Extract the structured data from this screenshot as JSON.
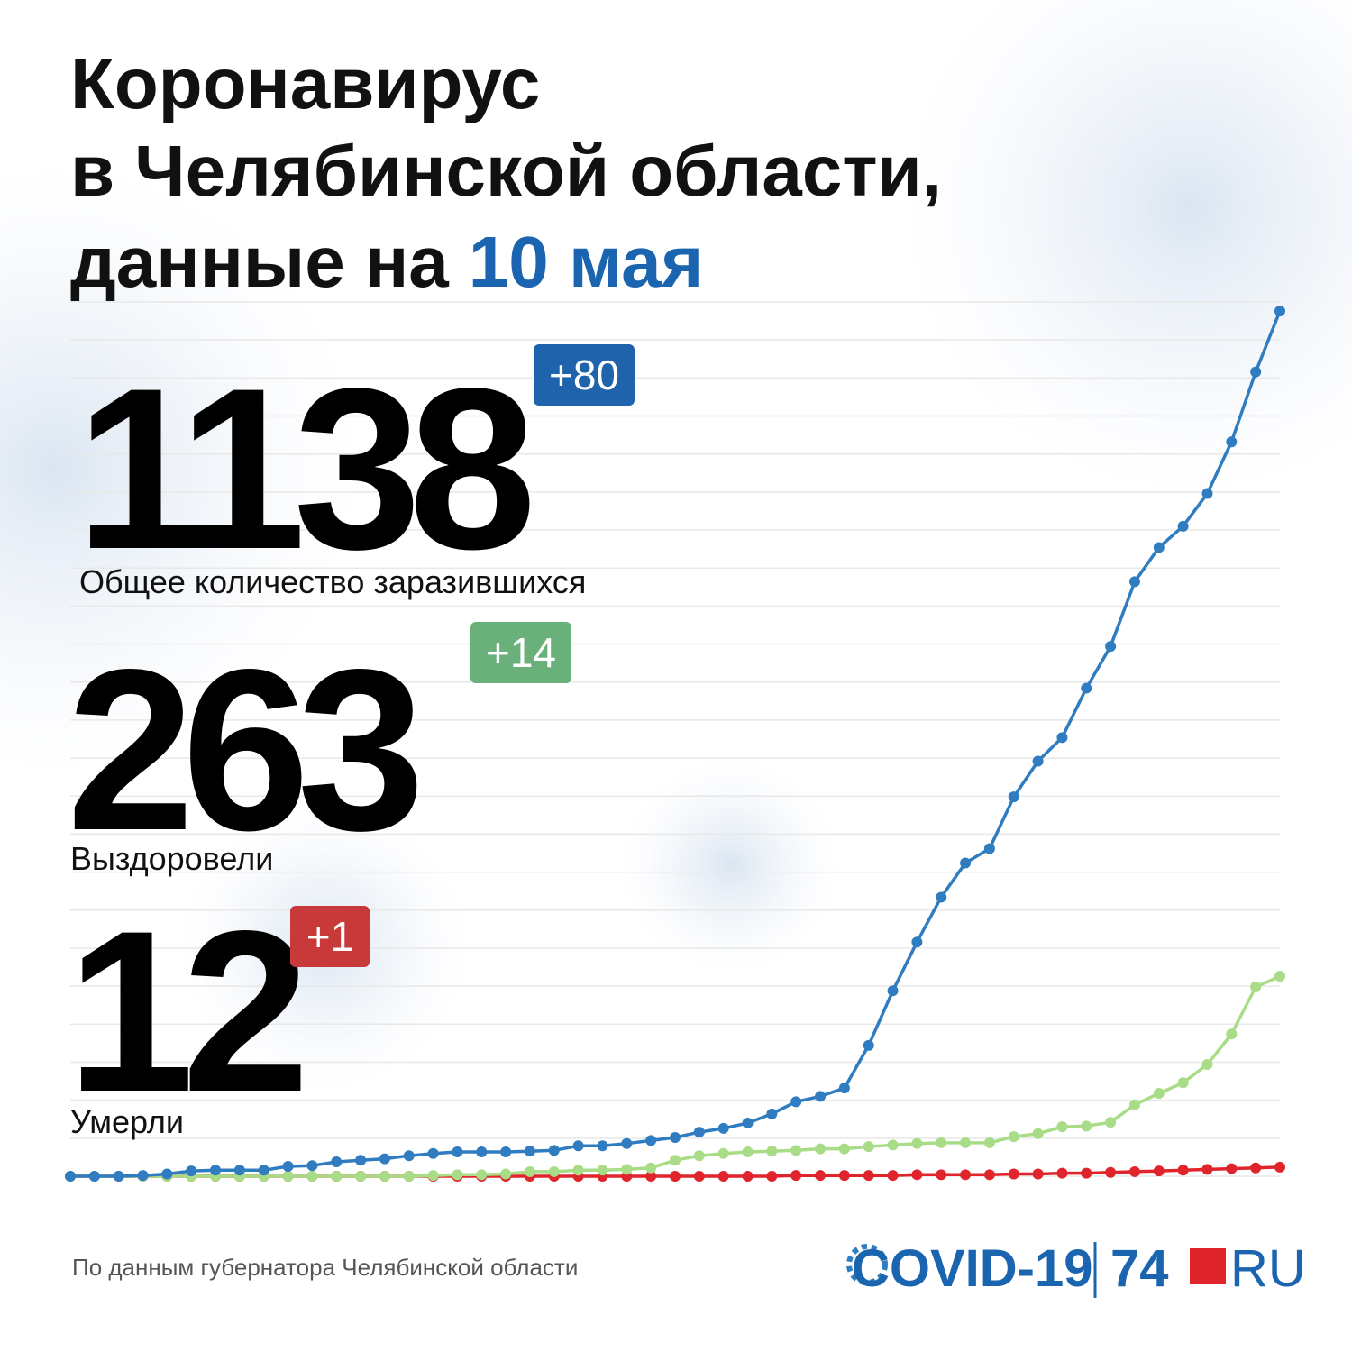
{
  "chart_data": {
    "type": "line",
    "title": [
      "Коронавирус",
      "в Челябинской области,",
      "данные на"
    ],
    "title_highlight": "10 мая",
    "ylim": [
      0,
      1150
    ],
    "yticks": [
      0,
      50,
      100,
      150,
      200,
      250,
      300,
      350,
      400,
      450,
      500,
      550,
      600,
      650,
      700,
      750,
      800,
      850,
      900,
      950,
      1000,
      1050,
      1100,
      1150
    ],
    "grid": true,
    "series": [
      {
        "name": "Общее количество заразившихся",
        "color": "#2f7dc0",
        "change": "+80",
        "badge_color": "#1f63ad",
        "values": [
          0,
          0,
          0,
          1,
          3,
          7,
          8,
          8,
          8,
          13,
          14,
          19,
          21,
          23,
          27,
          30,
          32,
          32,
          32,
          33,
          34,
          40,
          40,
          43,
          47,
          51,
          58,
          63,
          70,
          82,
          98,
          105,
          116,
          172,
          244,
          308,
          367,
          412,
          431,
          499,
          546,
          577,
          642,
          697,
          782,
          827,
          855,
          898,
          966,
          1058,
          1138
        ]
      },
      {
        "name": "Выздоровели",
        "color": "#a8dc86",
        "change": "+14",
        "badge_color": "#6ab07a",
        "values": [
          0,
          0,
          0,
          0,
          0,
          0,
          0,
          0,
          0,
          0,
          0,
          0,
          0,
          0,
          0,
          1,
          2,
          2,
          3,
          6,
          6,
          8,
          8,
          9,
          11,
          21,
          27,
          30,
          32,
          33,
          34,
          36,
          36,
          39,
          41,
          43,
          44,
          44,
          44,
          52,
          56,
          65,
          66,
          71,
          94,
          109,
          123,
          147,
          187,
          249,
          263
        ]
      },
      {
        "name": "Умерли",
        "color": "#e0242c",
        "change": "+1",
        "badge_color": "#c8393a",
        "values": [
          0,
          0,
          0,
          0,
          0,
          0,
          0,
          0,
          0,
          0,
          0,
          0,
          0,
          0,
          0,
          0,
          0,
          0,
          0,
          0,
          0,
          0,
          0,
          0,
          0,
          0,
          0,
          0,
          0,
          0,
          1,
          1,
          1,
          1,
          1,
          2,
          2,
          2,
          2,
          3,
          3,
          4,
          4,
          5,
          6,
          7,
          8,
          9,
          10,
          11,
          12
        ]
      }
    ],
    "source": "По данным губернатора Челябинской области"
  },
  "branding": {
    "project": "COVID-19",
    "site": "74",
    "domain": "RU"
  }
}
